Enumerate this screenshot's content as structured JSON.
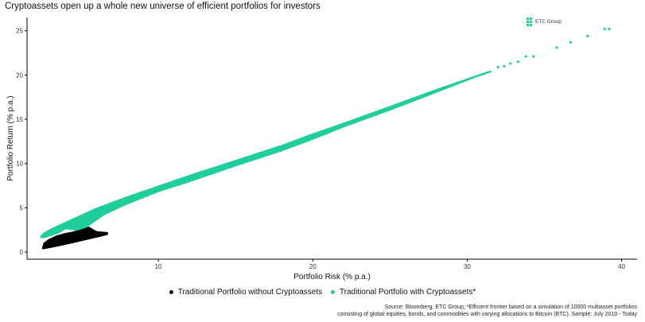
{
  "title": "Cryptoassets open up a whole new universe of efficient portfolios for investors",
  "logo_text": "ETC Group",
  "source_lines": [
    "Source: Bloomberg, ETC Group; *Efficient frontier based on a simulation of 10000 multiasset portfolios",
    "consisting of global equities, bonds, and commodities with varying allocations to Bitcoin (BTC). Sample: July 2010 - Today"
  ],
  "colors": {
    "crypto": "#1fce9b",
    "traditional": "#000000"
  },
  "chart_data": {
    "type": "scatter",
    "xlabel": "Portfolio Risk (% p.a.)",
    "ylabel": "Portfolio Return (% p.a.)",
    "xlim": [
      1.5,
      41
    ],
    "ylim": [
      -0.8,
      26.5
    ],
    "xticks": [
      10,
      20,
      30,
      40
    ],
    "yticks": [
      0,
      5,
      10,
      15,
      20,
      25
    ],
    "grid": false,
    "legend_position": "bottom",
    "series": [
      {
        "name": "Traditional Portfolio without Cryptoassets",
        "color": "#000000",
        "shape": "filled-region",
        "boundary": [
          [
            2.5,
            0.4
          ],
          [
            2.6,
            1.0
          ],
          [
            2.9,
            1.4
          ],
          [
            3.4,
            1.8
          ],
          [
            4.0,
            2.1
          ],
          [
            4.6,
            2.3
          ],
          [
            5.0,
            2.5
          ],
          [
            5.5,
            2.8
          ],
          [
            6.0,
            2.3
          ],
          [
            6.7,
            2.2
          ],
          [
            6.7,
            2.0
          ],
          [
            6.0,
            1.7
          ],
          [
            5.0,
            1.3
          ],
          [
            4.0,
            0.9
          ],
          [
            3.2,
            0.6
          ],
          [
            2.6,
            0.4
          ]
        ]
      },
      {
        "name": "Traditional Portfolio with Cryptoassets*",
        "color": "#1fce9b",
        "shape": "filled-region",
        "boundary": [
          [
            2.4,
            1.7
          ],
          [
            2.6,
            2.1
          ],
          [
            3.0,
            2.5
          ],
          [
            4.0,
            3.3
          ],
          [
            5.0,
            4.1
          ],
          [
            6.0,
            4.9
          ],
          [
            8.0,
            6.2
          ],
          [
            10.0,
            7.4
          ],
          [
            12.0,
            8.6
          ],
          [
            15.0,
            10.3
          ],
          [
            18.0,
            12.0
          ],
          [
            20.0,
            13.3
          ],
          [
            22.0,
            14.5
          ],
          [
            25.0,
            16.4
          ],
          [
            28.0,
            18.3
          ],
          [
            30.0,
            19.5
          ],
          [
            31.5,
            20.4
          ],
          [
            30.5,
            19.8
          ],
          [
            28.0,
            18.1
          ],
          [
            25.0,
            16.1
          ],
          [
            22.0,
            14.2
          ],
          [
            20.0,
            12.8
          ],
          [
            18.0,
            11.5
          ],
          [
            15.0,
            9.8
          ],
          [
            12.0,
            8.0
          ],
          [
            10.0,
            6.9
          ],
          [
            8.0,
            5.5
          ],
          [
            6.5,
            4.3
          ],
          [
            5.5,
            3.1
          ],
          [
            5.0,
            2.2
          ],
          [
            4.5,
            2.6
          ],
          [
            4.0,
            2.7
          ],
          [
            3.5,
            2.2
          ],
          [
            3.0,
            1.9
          ],
          [
            2.6,
            1.7
          ]
        ],
        "points": [
          [
            32.0,
            20.9
          ],
          [
            32.4,
            21.0
          ],
          [
            32.8,
            21.3
          ],
          [
            33.3,
            21.5
          ],
          [
            33.8,
            22.1
          ],
          [
            34.3,
            22.1
          ],
          [
            35.8,
            23.1
          ],
          [
            36.7,
            23.7
          ],
          [
            37.8,
            24.4
          ],
          [
            38.9,
            25.2
          ],
          [
            39.2,
            25.2
          ],
          [
            6.0,
            4.7
          ],
          [
            6.3,
            4.3
          ],
          [
            5.8,
            4.6
          ],
          [
            6.5,
            4.9
          ],
          [
            5.6,
            4.3
          ]
        ]
      }
    ]
  }
}
